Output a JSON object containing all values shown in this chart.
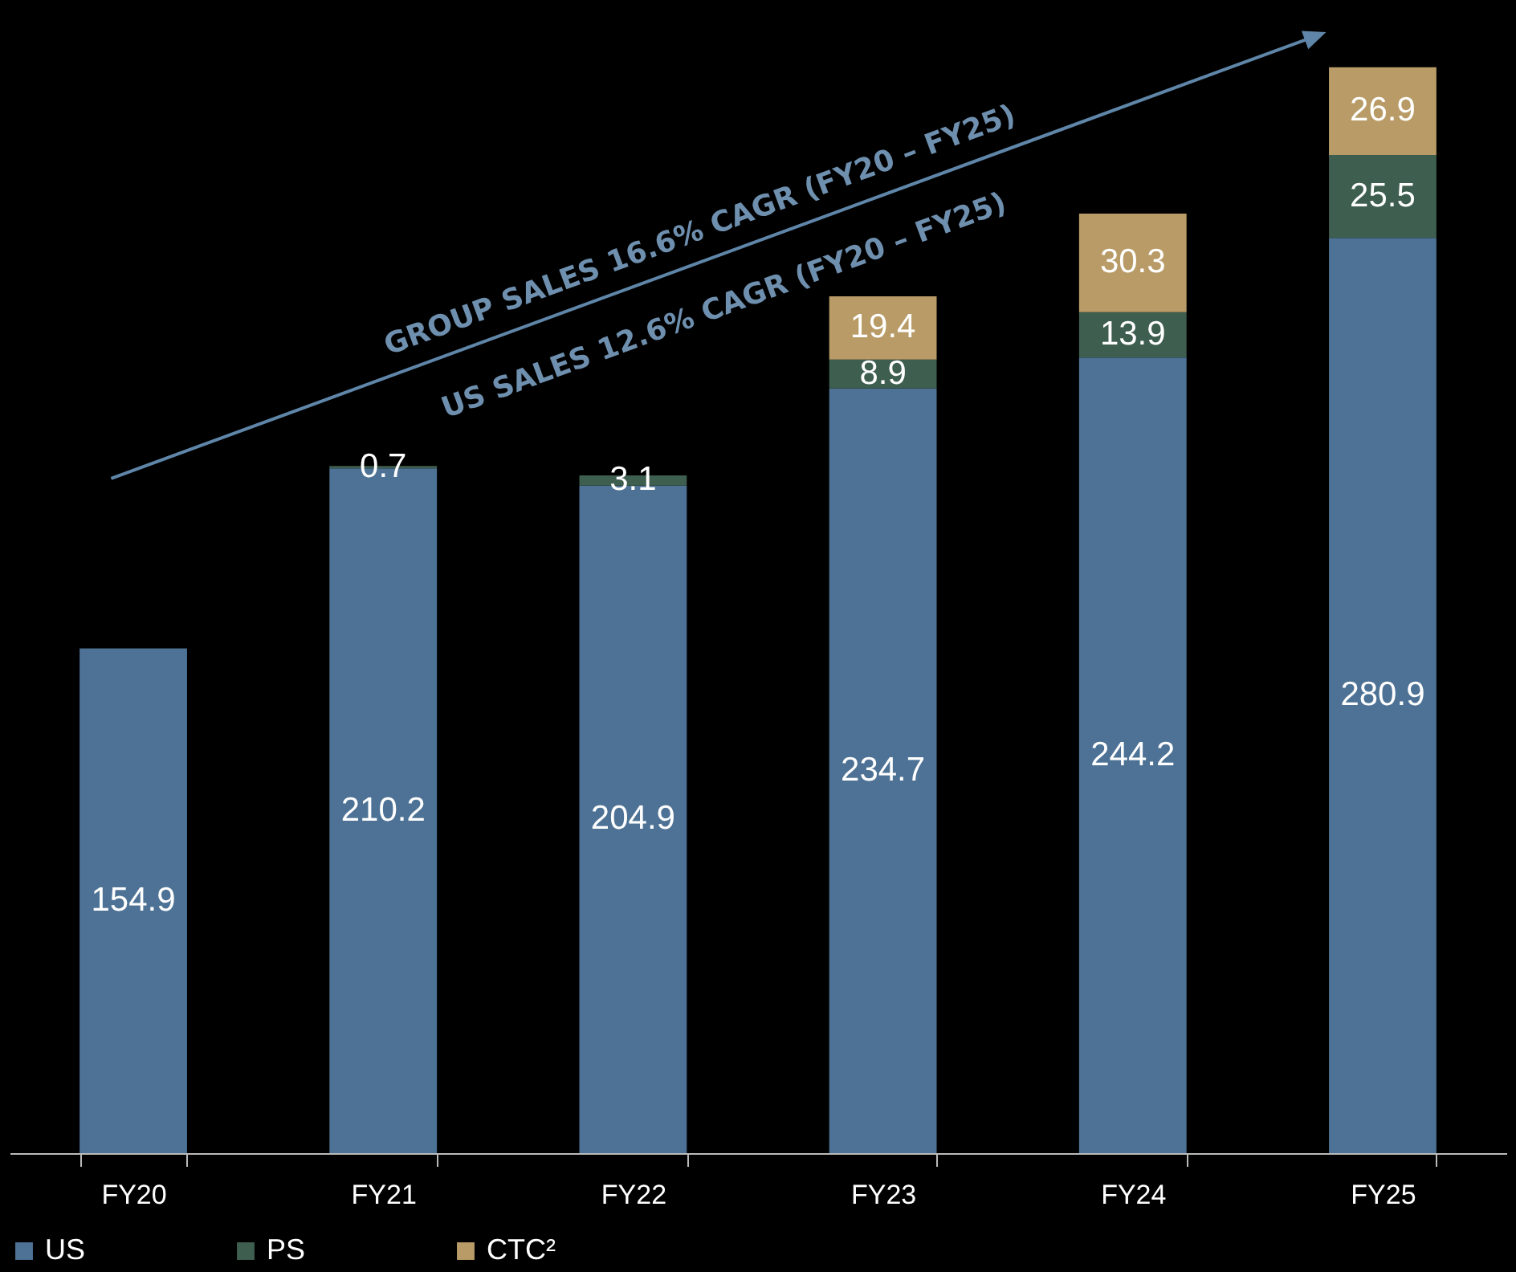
{
  "chart_data": {
    "type": "bar",
    "stacked": true,
    "data_labels": true,
    "grid": false,
    "legend": "bottom",
    "tick_labels": "x",
    "categories": [
      "FY20",
      "FY21",
      "FY22",
      "FY23",
      "FY24",
      "FY25"
    ],
    "series": [
      {
        "name": "US",
        "color": "#4d7295",
        "values": [
          154.9,
          210.2,
          204.9,
          234.7,
          244.2,
          280.9
        ]
      },
      {
        "name": "PS",
        "color": "#3e5e4f",
        "values": [
          null,
          0.7,
          3.1,
          8.9,
          13.9,
          25.5
        ]
      },
      {
        "name": "CTC²",
        "color": "#b89b66",
        "values": [
          null,
          null,
          null,
          19.4,
          30.3,
          26.9
        ]
      }
    ],
    "annotations": [
      "GROUP SALES 16.6% CAGR (FY20 – FY25)",
      "US SALES 12.6% CAGR (FY20 – FY25)"
    ]
  }
}
